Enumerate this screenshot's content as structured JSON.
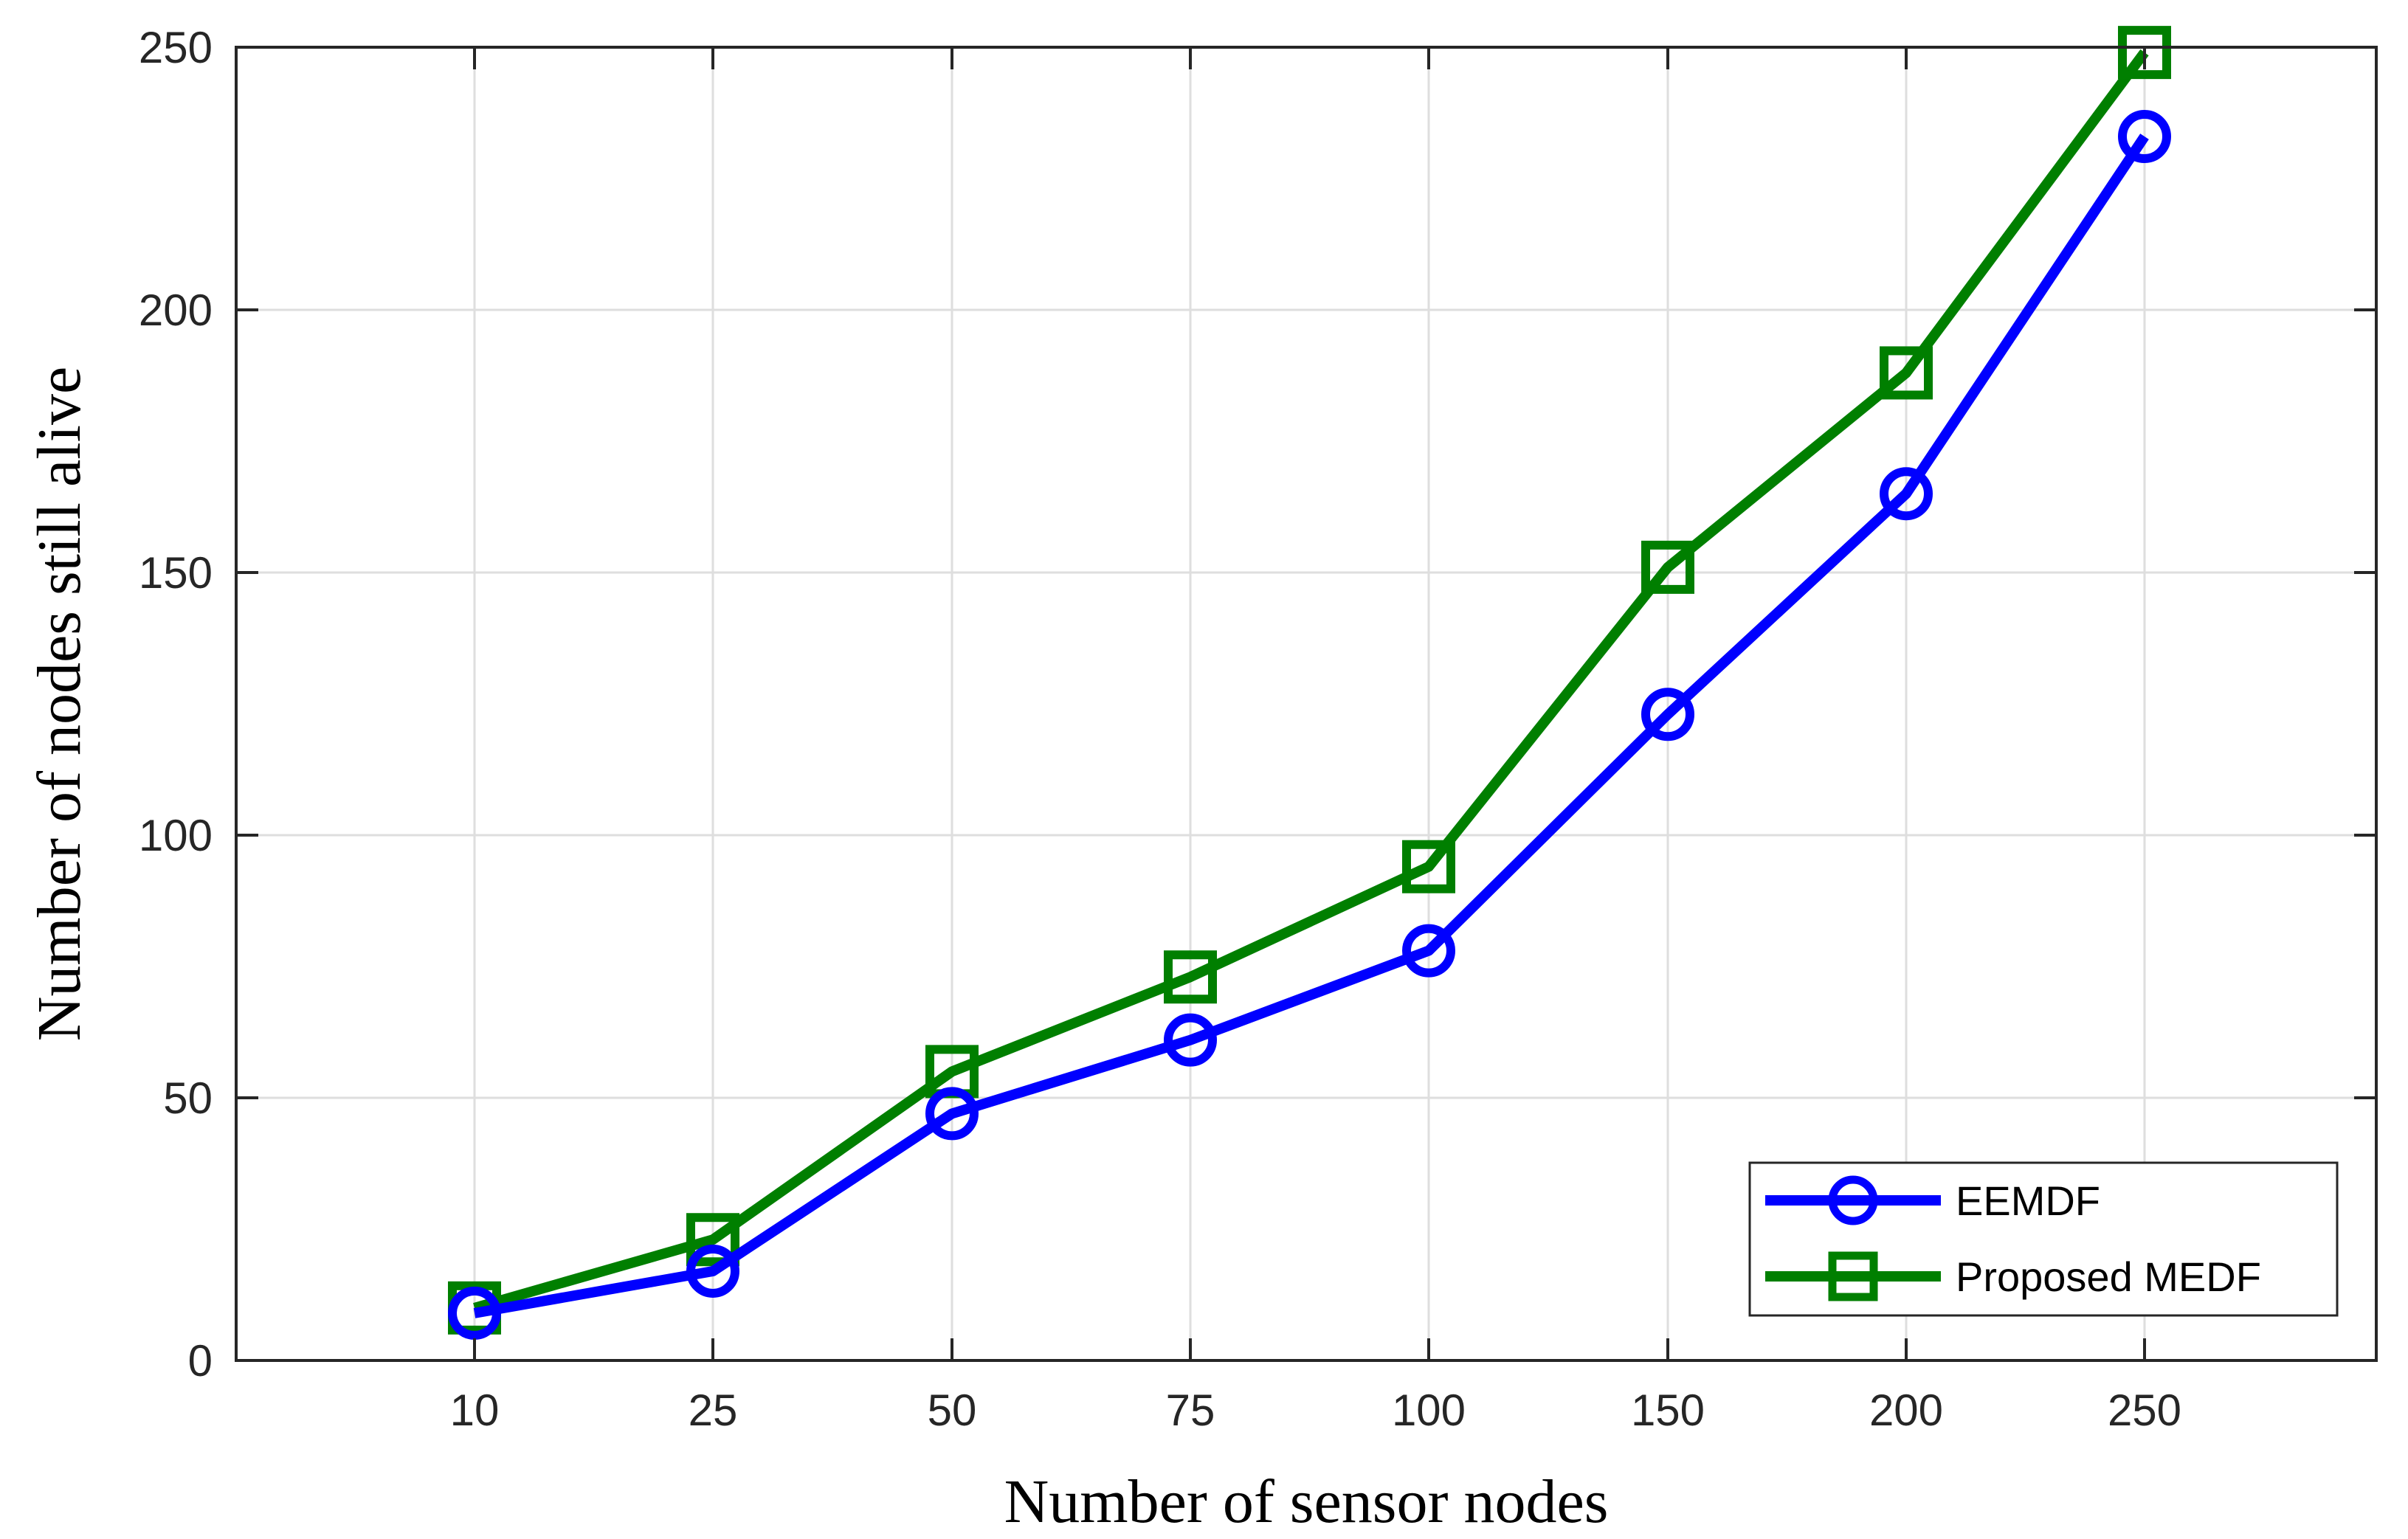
{
  "chart_data": {
    "type": "line",
    "title": "",
    "xlabel": "Number of sensor nodes",
    "ylabel": "Number of nodes still alive",
    "categories": [
      "10",
      "25",
      "50",
      "75",
      "100",
      "150",
      "200",
      "250"
    ],
    "ylim": [
      0,
      250
    ],
    "yticks": [
      "0",
      "50",
      "100",
      "150",
      "200",
      "250"
    ],
    "grid": true,
    "legend_position": "bottom-right",
    "series": [
      {
        "name": "EEMDF",
        "marker": "circle",
        "color": "#0000FF",
        "values": [
          9,
          17,
          47,
          61,
          78,
          123,
          165,
          233
        ]
      },
      {
        "name": "Proposed MEDF",
        "marker": "square",
        "color": "#007F00",
        "values": [
          10,
          23,
          55,
          73,
          94,
          151,
          188,
          249
        ]
      }
    ]
  }
}
